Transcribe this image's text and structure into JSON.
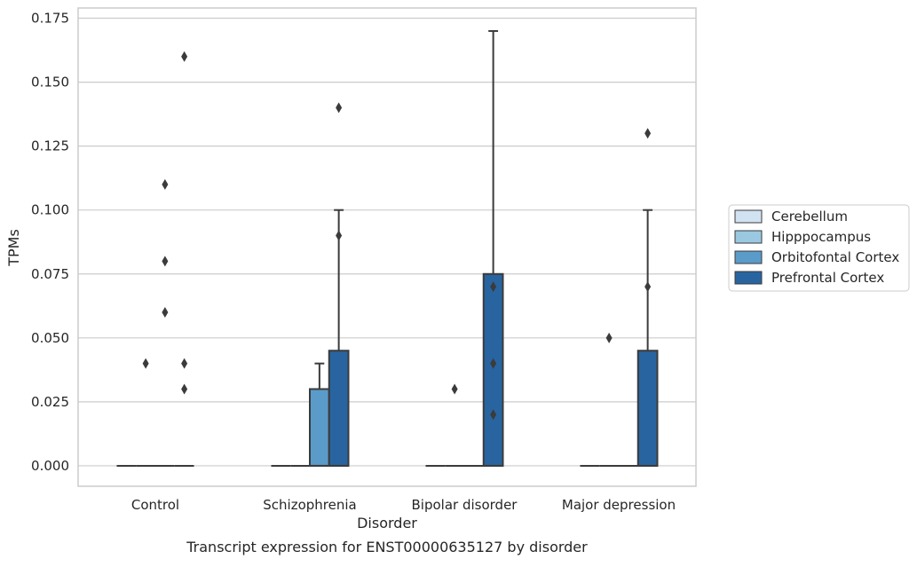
{
  "chart_data": {
    "type": "box",
    "xlabel": "Disorder",
    "ylabel": "TPMs",
    "caption": "Transcript expression for ENST00000635127 by disorder",
    "categories": [
      "Control",
      "Schizophrenia",
      "Bipolar disorder",
      "Major depression"
    ],
    "ylim": [
      -0.008,
      0.179
    ],
    "yticks": [
      "0.000",
      "0.025",
      "0.050",
      "0.075",
      "0.100",
      "0.125",
      "0.150",
      "0.175"
    ],
    "grid": "horizontal",
    "legend_placement": "right",
    "series": [
      {
        "name": "Cerebellum",
        "color": "#d1e2f2",
        "boxes": [
          {
            "q1": 0,
            "median": 0,
            "q3": 0,
            "whislo": 0,
            "whishi": 0,
            "fliers": []
          },
          {
            "q1": 0,
            "median": 0,
            "q3": 0,
            "whislo": 0,
            "whishi": 0,
            "fliers": []
          },
          {
            "q1": 0,
            "median": 0,
            "q3": 0,
            "whislo": 0,
            "whishi": 0,
            "fliers": []
          },
          {
            "q1": 0,
            "median": 0,
            "q3": 0,
            "whislo": 0,
            "whishi": 0,
            "fliers": []
          }
        ]
      },
      {
        "name": "Hipppocampus",
        "color": "#9ac8e0",
        "boxes": [
          {
            "q1": 0,
            "median": 0,
            "q3": 0,
            "whislo": 0,
            "whishi": 0,
            "fliers": [
              0.04
            ]
          },
          {
            "q1": 0,
            "median": 0,
            "q3": 0,
            "whislo": 0,
            "whishi": 0,
            "fliers": []
          },
          {
            "q1": 0,
            "median": 0,
            "q3": 0,
            "whislo": 0,
            "whishi": 0,
            "fliers": [
              0.03
            ]
          },
          {
            "q1": 0,
            "median": 0,
            "q3": 0,
            "whislo": 0,
            "whishi": 0,
            "fliers": [
              0.05
            ]
          }
        ]
      },
      {
        "name": "Orbitofontal Cortex",
        "color": "#5a9bc9",
        "boxes": [
          {
            "q1": 0,
            "median": 0,
            "q3": 0,
            "whislo": 0,
            "whishi": 0,
            "fliers": [
              0.06,
              0.08,
              0.11
            ]
          },
          {
            "q1": 0,
            "median": 0,
            "q3": 0.03,
            "whislo": 0,
            "whishi": 0.04,
            "fliers": []
          },
          {
            "q1": 0,
            "median": 0,
            "q3": 0,
            "whislo": 0,
            "whishi": 0,
            "fliers": []
          },
          {
            "q1": 0,
            "median": 0,
            "q3": 0,
            "whislo": 0,
            "whishi": 0,
            "fliers": []
          }
        ]
      },
      {
        "name": "Prefrontal Cortex",
        "color": "#2864a0",
        "boxes": [
          {
            "q1": 0,
            "median": 0,
            "q3": 0,
            "whislo": 0,
            "whishi": 0,
            "fliers": [
              0.03,
              0.04,
              0.16
            ]
          },
          {
            "q1": 0,
            "median": 0,
            "q3": 0.045,
            "whislo": 0,
            "whishi": 0.1,
            "fliers": [
              0.09,
              0.14
            ]
          },
          {
            "q1": 0,
            "median": 0,
            "q3": 0.075,
            "whislo": 0,
            "whishi": 0.17,
            "fliers": [
              0.02,
              0.04,
              0.07
            ]
          },
          {
            "q1": 0,
            "median": 0,
            "q3": 0.045,
            "whislo": 0,
            "whishi": 0.1,
            "fliers": [
              0.07,
              0.13
            ]
          }
        ]
      }
    ]
  }
}
